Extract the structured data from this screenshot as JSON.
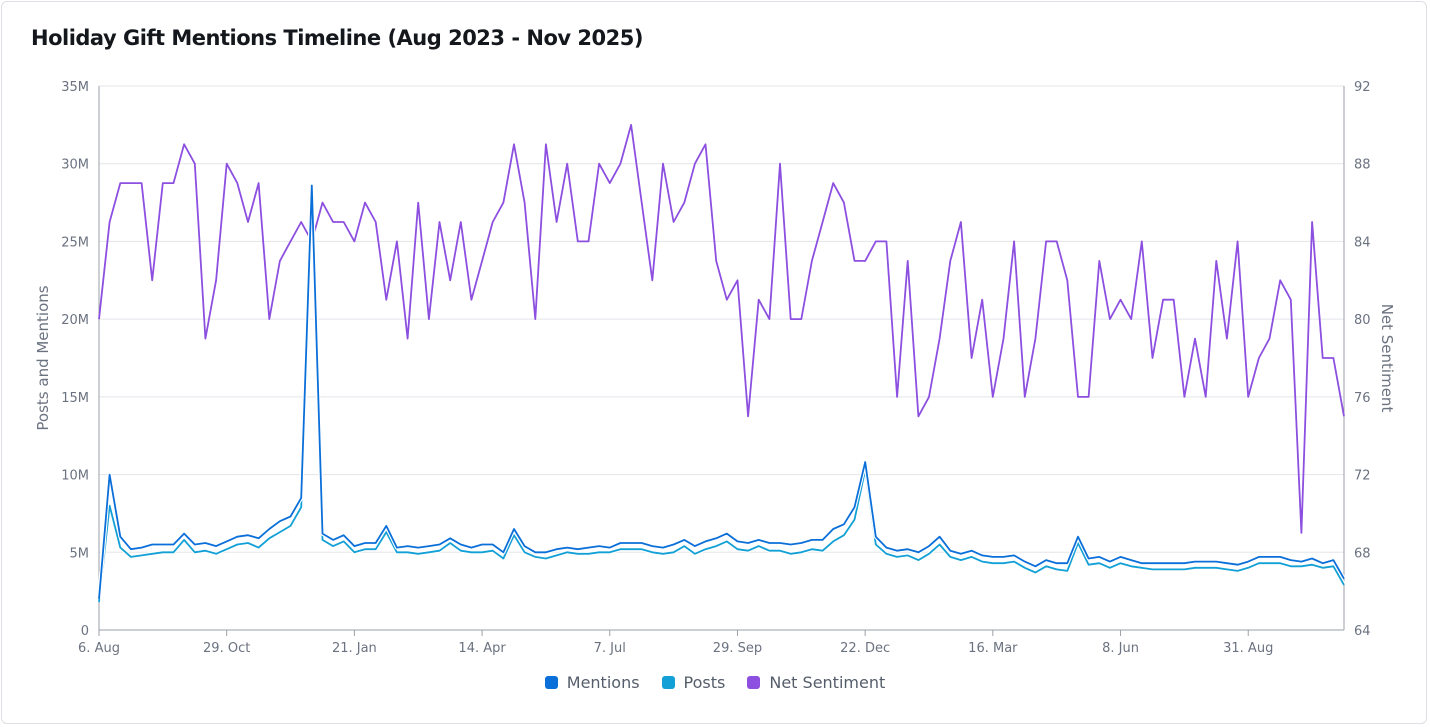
{
  "title": "Holiday Gift Mentions Timeline (Aug 2023 - Nov 2025)",
  "chart_data": {
    "type": "line",
    "title": "Holiday Gift Mentions Timeline (Aug 2023 - Nov 2025)",
    "xlabel": "",
    "ylabel": "Posts and Mentions",
    "y2label": "Net Sentiment",
    "ylim": [
      0,
      35000000
    ],
    "y2lim": [
      64,
      92
    ],
    "y_ticks": [
      "0",
      "5M",
      "10M",
      "15M",
      "20M",
      "25M",
      "30M",
      "35M"
    ],
    "y_tick_values": [
      0,
      5000000,
      10000000,
      15000000,
      20000000,
      25000000,
      30000000,
      35000000
    ],
    "y2_ticks": [
      "64",
      "68",
      "72",
      "76",
      "80",
      "84",
      "88",
      "92"
    ],
    "x_ticks": [
      {
        "label": "6. Aug",
        "date": "2023-08-06"
      },
      {
        "label": "29. Oct",
        "date": "2023-10-29"
      },
      {
        "label": "21. Jan",
        "date": "2024-01-21"
      },
      {
        "label": "14. Apr",
        "date": "2024-04-14"
      },
      {
        "label": "7. Jul",
        "date": "2024-07-07"
      },
      {
        "label": "29. Sep",
        "date": "2024-09-29"
      },
      {
        "label": "22. Dec",
        "date": "2024-12-22"
      },
      {
        "label": "16. Mar",
        "date": "2025-03-16"
      },
      {
        "label": "8. Jun",
        "date": "2025-06-08"
      },
      {
        "label": "31. Aug",
        "date": "2025-08-31"
      }
    ],
    "grid": true,
    "legend": "bottom",
    "x": [
      "2023-08-06",
      "2023-08-13",
      "2023-08-20",
      "2023-08-27",
      "2023-09-03",
      "2023-09-10",
      "2023-09-17",
      "2023-09-24",
      "2023-10-01",
      "2023-10-08",
      "2023-10-15",
      "2023-10-22",
      "2023-10-29",
      "2023-11-05",
      "2023-11-12",
      "2023-11-19",
      "2023-11-26",
      "2023-12-03",
      "2023-12-10",
      "2023-12-17",
      "2023-12-24",
      "2023-12-31",
      "2024-01-07",
      "2024-01-14",
      "2024-01-21",
      "2024-01-28",
      "2024-02-04",
      "2024-02-11",
      "2024-02-18",
      "2024-02-25",
      "2024-03-03",
      "2024-03-10",
      "2024-03-17",
      "2024-03-24",
      "2024-03-31",
      "2024-04-07",
      "2024-04-14",
      "2024-04-21",
      "2024-04-28",
      "2024-05-05",
      "2024-05-12",
      "2024-05-19",
      "2024-05-26",
      "2024-06-02",
      "2024-06-09",
      "2024-06-16",
      "2024-06-23",
      "2024-06-30",
      "2024-07-07",
      "2024-07-14",
      "2024-07-21",
      "2024-07-28",
      "2024-08-04",
      "2024-08-11",
      "2024-08-18",
      "2024-08-25",
      "2024-09-01",
      "2024-09-08",
      "2024-09-15",
      "2024-09-22",
      "2024-09-29",
      "2024-10-06",
      "2024-10-13",
      "2024-10-20",
      "2024-10-27",
      "2024-11-03",
      "2024-11-10",
      "2024-11-17",
      "2024-11-24",
      "2024-12-01",
      "2024-12-08",
      "2024-12-15",
      "2024-12-22",
      "2024-12-29",
      "2025-01-05",
      "2025-01-12",
      "2025-01-19",
      "2025-01-26",
      "2025-02-02",
      "2025-02-09",
      "2025-02-16",
      "2025-02-23",
      "2025-03-02",
      "2025-03-09",
      "2025-03-16",
      "2025-03-23",
      "2025-03-30",
      "2025-04-06",
      "2025-04-13",
      "2025-04-20",
      "2025-04-27",
      "2025-05-04",
      "2025-05-11",
      "2025-05-18",
      "2025-05-25",
      "2025-06-01",
      "2025-06-08",
      "2025-06-15",
      "2025-06-22",
      "2025-06-29",
      "2025-07-06",
      "2025-07-13",
      "2025-07-20",
      "2025-07-27",
      "2025-08-03",
      "2025-08-10",
      "2025-08-17",
      "2025-08-24",
      "2025-08-31",
      "2025-09-07",
      "2025-09-14",
      "2025-09-21",
      "2025-09-28",
      "2025-10-05",
      "2025-10-12",
      "2025-10-19",
      "2025-10-26",
      "2025-11-02"
    ],
    "series": [
      {
        "name": "Mentions",
        "axis": "left",
        "color": "#0b6fd9",
        "values": [
          2.0,
          10.0,
          6.0,
          5.2,
          5.3,
          5.5,
          5.5,
          5.5,
          6.2,
          5.5,
          5.6,
          5.4,
          5.7,
          6.0,
          6.1,
          5.9,
          6.5,
          7.0,
          7.3,
          8.5,
          28.6,
          6.2,
          5.8,
          6.1,
          5.4,
          5.6,
          5.6,
          6.7,
          5.3,
          5.4,
          5.3,
          5.4,
          5.5,
          5.9,
          5.5,
          5.3,
          5.5,
          5.5,
          5.0,
          6.5,
          5.4,
          5.0,
          5.0,
          5.2,
          5.3,
          5.2,
          5.3,
          5.4,
          5.3,
          5.6,
          5.6,
          5.6,
          5.4,
          5.3,
          5.5,
          5.8,
          5.4,
          5.7,
          5.9,
          6.2,
          5.7,
          5.6,
          5.8,
          5.6,
          5.6,
          5.5,
          5.6,
          5.8,
          5.8,
          6.5,
          6.8,
          7.9,
          10.8,
          6.0,
          5.3,
          5.1,
          5.2,
          5.0,
          5.4,
          6.0,
          5.1,
          4.9,
          5.1,
          4.8,
          4.7,
          4.7,
          4.8,
          4.4,
          4.1,
          4.5,
          4.3,
          4.3,
          6.0,
          4.6,
          4.7,
          4.4,
          4.7,
          4.5,
          4.3,
          4.3,
          4.3,
          4.3,
          4.3,
          4.4,
          4.4,
          4.4,
          4.3,
          4.2,
          4.4,
          4.7,
          4.7,
          4.7,
          4.5,
          4.4,
          4.6,
          4.3,
          4.5,
          3.3
        ],
        "unit": "M"
      },
      {
        "name": "Posts",
        "axis": "left",
        "color": "#12a0d6",
        "values": [
          1.8,
          8.0,
          5.3,
          4.7,
          4.8,
          4.9,
          5.0,
          5.0,
          5.8,
          5.0,
          5.1,
          4.9,
          5.2,
          5.5,
          5.6,
          5.3,
          5.9,
          6.3,
          6.7,
          7.9,
          28.5,
          5.8,
          5.4,
          5.7,
          5.0,
          5.2,
          5.2,
          6.3,
          5.0,
          5.0,
          4.9,
          5.0,
          5.1,
          5.6,
          5.1,
          5.0,
          5.0,
          5.1,
          4.6,
          6.1,
          5.0,
          4.7,
          4.6,
          4.8,
          5.0,
          4.9,
          4.9,
          5.0,
          5.0,
          5.2,
          5.2,
          5.2,
          5.0,
          4.9,
          5.0,
          5.4,
          4.9,
          5.2,
          5.4,
          5.7,
          5.2,
          5.1,
          5.4,
          5.1,
          5.1,
          4.9,
          5.0,
          5.2,
          5.1,
          5.7,
          6.1,
          7.1,
          10.3,
          5.5,
          4.9,
          4.7,
          4.8,
          4.5,
          4.9,
          5.5,
          4.7,
          4.5,
          4.7,
          4.4,
          4.3,
          4.3,
          4.4,
          4.0,
          3.7,
          4.1,
          3.9,
          3.8,
          5.6,
          4.2,
          4.3,
          4.0,
          4.3,
          4.1,
          4.0,
          3.9,
          3.9,
          3.9,
          3.9,
          4.0,
          4.0,
          4.0,
          3.9,
          3.8,
          4.0,
          4.3,
          4.3,
          4.3,
          4.1,
          4.1,
          4.2,
          4.0,
          4.1,
          2.9
        ],
        "unit": "M"
      },
      {
        "name": "Net Sentiment",
        "axis": "right",
        "color": "#8c4fe0",
        "values": [
          80,
          85,
          87,
          87,
          87,
          82,
          87,
          87,
          89,
          88,
          79,
          82,
          88,
          87,
          85,
          87,
          80,
          83,
          84,
          85,
          84,
          86,
          85,
          85,
          84,
          86,
          85,
          81,
          84,
          79,
          86,
          80,
          85,
          82,
          85,
          81,
          83,
          85,
          86,
          89,
          86,
          80,
          89,
          85,
          88,
          84,
          84,
          88,
          87,
          88,
          90,
          86,
          82,
          88,
          85,
          86,
          88,
          89,
          83,
          81,
          82,
          75,
          81,
          80,
          88,
          80,
          80,
          83,
          85,
          87,
          86,
          83,
          83,
          84,
          84,
          76,
          83,
          75,
          76,
          79,
          83,
          85,
          78,
          81,
          76,
          79,
          84,
          76,
          79,
          84,
          84,
          82,
          76,
          76,
          83,
          80,
          81,
          80,
          84,
          78,
          81,
          81,
          76,
          79,
          76,
          83,
          79,
          84,
          76,
          78,
          79,
          82,
          81,
          69,
          85,
          78,
          78,
          75
        ]
      }
    ]
  }
}
